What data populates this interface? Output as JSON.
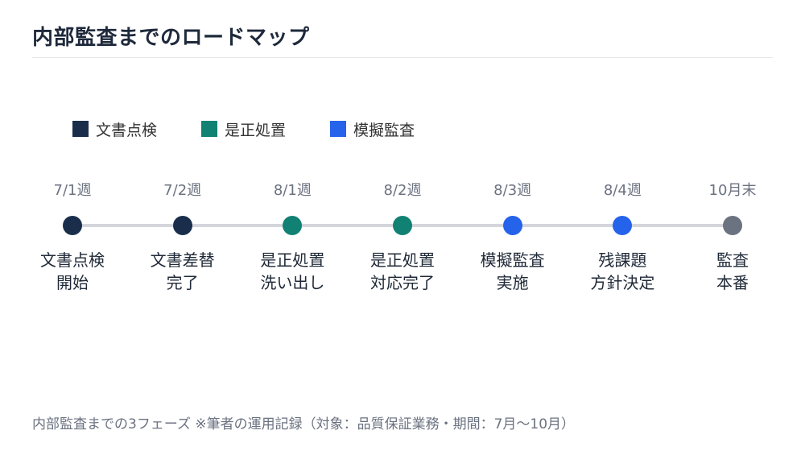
{
  "title": "内部監査までのロードマップ",
  "legend": [
    {
      "label": "文書点検",
      "color": "#1a2e4c"
    },
    {
      "label": "是正処置",
      "color": "#118174"
    },
    {
      "label": "模擬監査",
      "color": "#2563eb"
    }
  ],
  "milestones": [
    {
      "date": "7/1週",
      "lines": [
        "文書点検",
        "開始"
      ],
      "phase": "文書点検",
      "color": "#1a2e4c"
    },
    {
      "date": "7/2週",
      "lines": [
        "文書差替",
        "完了"
      ],
      "phase": "文書点検",
      "color": "#1a2e4c"
    },
    {
      "date": "8/1週",
      "lines": [
        "是正処置",
        "洗い出し"
      ],
      "phase": "是正処置",
      "color": "#118174"
    },
    {
      "date": "8/2週",
      "lines": [
        "是正処置",
        "対応完了"
      ],
      "phase": "是正処置",
      "color": "#118174"
    },
    {
      "date": "8/3週",
      "lines": [
        "模擬監査",
        "実施"
      ],
      "phase": "模擬監査",
      "color": "#2563eb"
    },
    {
      "date": "8/4週",
      "lines": [
        "残課題",
        "方針決定"
      ],
      "phase": "模擬監査",
      "color": "#2563eb"
    },
    {
      "date": "10月末",
      "lines": [
        "監査",
        "本番"
      ],
      "phase": "",
      "color": "#6b7280"
    }
  ],
  "colors": {
    "track": "#d5d5dc"
  },
  "footnote": "内部監査までの3フェーズ ※筆者の運用記録（対象：品質保証業務・期間：7月〜10月）"
}
